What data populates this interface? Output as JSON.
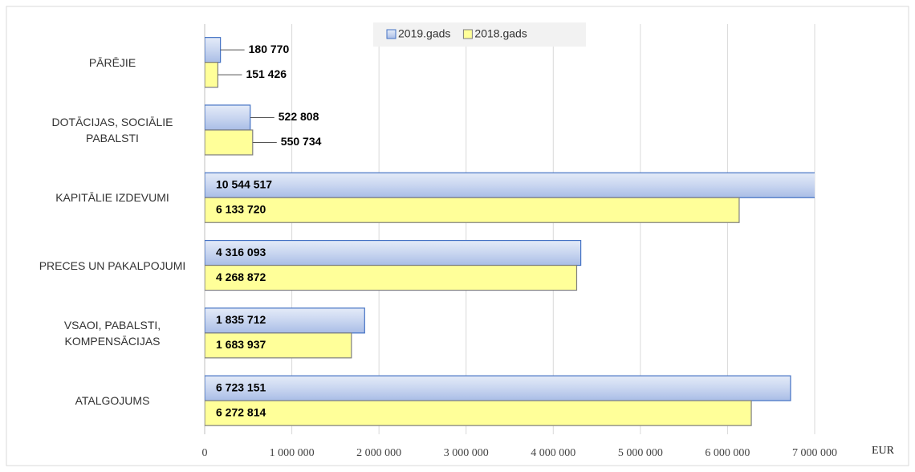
{
  "chart_data": {
    "type": "bar",
    "orientation": "horizontal",
    "categories": [
      "PĀRĒJIE",
      "DOTĀCIJAS, SOCIĀLIE PABALSTI",
      "KAPITĀLIE IZDEVUMI",
      "PRECES UN PAKALPOJUMI",
      "VSAOI, PABALSTI, KOMPENSĀCIJAS",
      "ATALGOJUMS"
    ],
    "series": [
      {
        "name": "2019.gads",
        "color": "#c9d6f0",
        "values": [
          180770,
          522808,
          10544517,
          4316093,
          1835712,
          6723151
        ],
        "value_labels": [
          "180 770",
          "522 808",
          "10 544 517",
          "4 316 093",
          "1 835 712",
          "6 723 151"
        ]
      },
      {
        "name": "2018.gads",
        "color": "#ffff99",
        "values": [
          151426,
          550734,
          6133720,
          4268872,
          1683937,
          6272814
        ],
        "value_labels": [
          "151 426",
          "550 734",
          "6 133 720",
          "4 268 872",
          "1 683 937",
          "6 272 814"
        ]
      }
    ],
    "x_label": "EUR",
    "xlim": [
      0,
      7000000
    ],
    "xticks": [
      0,
      {
        "value": 1000000,
        "label": "1 000 000"
      },
      {
        "value": 2000000,
        "label": "2 000 000"
      },
      {
        "value": 3000000,
        "label": "3 000 000"
      },
      {
        "value": 4000000,
        "label": "4 000 000"
      },
      {
        "value": 5000000,
        "label": "5 000 000"
      },
      {
        "value": 6000000,
        "label": "6 000 000"
      },
      {
        "value": 7000000,
        "label": "7 000 000"
      }
    ],
    "grid": true,
    "legend": "top"
  }
}
